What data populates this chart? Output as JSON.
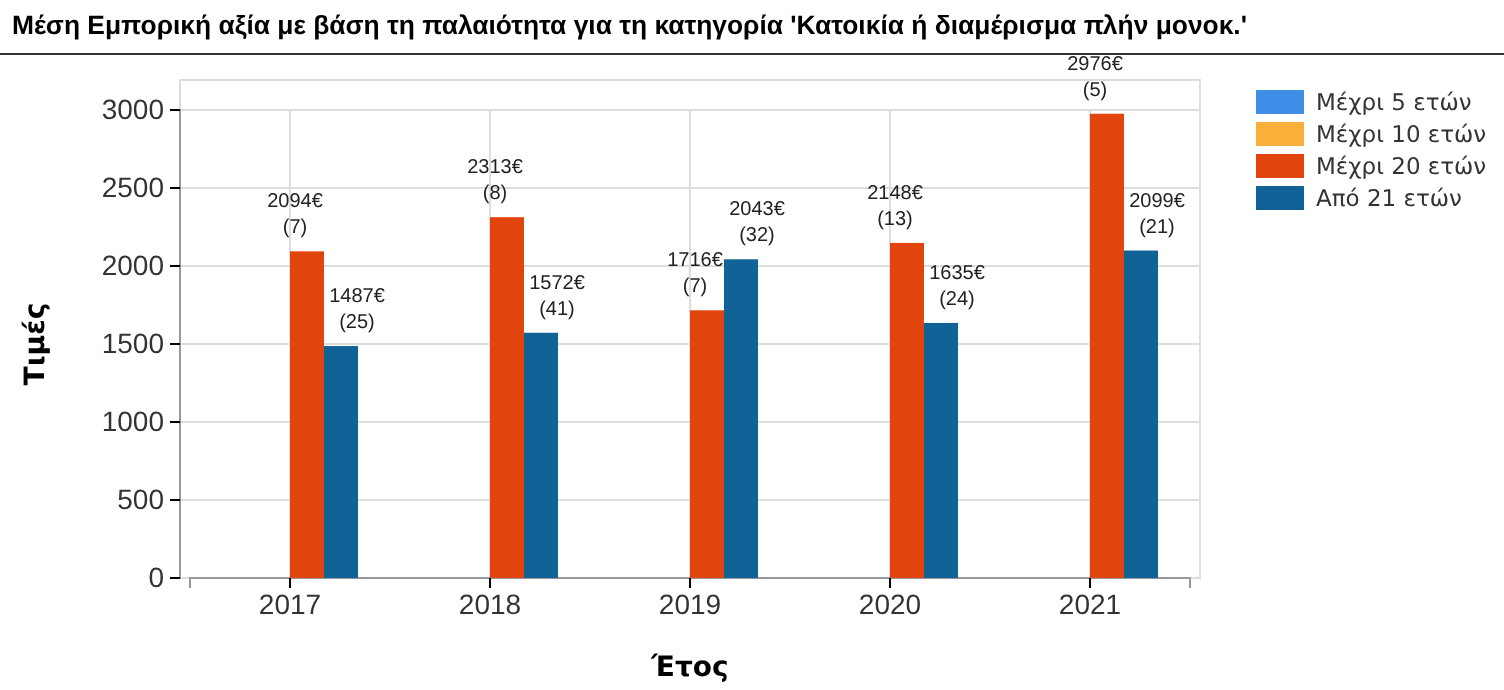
{
  "chart_data": {
    "type": "bar",
    "title": "Μέση Εμπορική αξία με βάση τη παλαιότητα για τη κατηγορία 'Κατοικία ή διαμέρισμα πλήν μονοκ.'",
    "xlabel": "Έτος",
    "ylabel": "Τιμές",
    "categories": [
      "2017",
      "2018",
      "2019",
      "2020",
      "2021"
    ],
    "series": [
      {
        "name": "Μέχρι 5 ετών",
        "color": "#3f8ee8",
        "values": [
          null,
          null,
          null,
          null,
          null
        ]
      },
      {
        "name": "Μέχρι 10 ετών",
        "color": "#fbb03b",
        "values": [
          null,
          null,
          null,
          null,
          null
        ]
      },
      {
        "name": "Μέχρι 20 ετών",
        "color": "#e2440e",
        "values": [
          2094,
          2313,
          1716,
          2148,
          2976
        ],
        "value_labels": [
          "2094€\n(7)",
          "2313€\n(8)",
          "1716€\n(7)",
          "2148€\n(13)",
          "2976€\n(5)"
        ]
      },
      {
        "name": "Από 21 ετών",
        "color": "#0f6396",
        "values": [
          1487,
          1572,
          2043,
          1635,
          2099
        ],
        "value_labels": [
          "1487€\n(25)",
          "1572€\n(41)",
          "2043€\n(32)",
          "1635€\n(24)",
          "2099€\n(21)"
        ]
      }
    ],
    "ylim": [
      0,
      3000
    ],
    "yticks": [
      0,
      500,
      1000,
      1500,
      2000,
      2500,
      3000
    ],
    "grid": true,
    "legend": "top right"
  }
}
